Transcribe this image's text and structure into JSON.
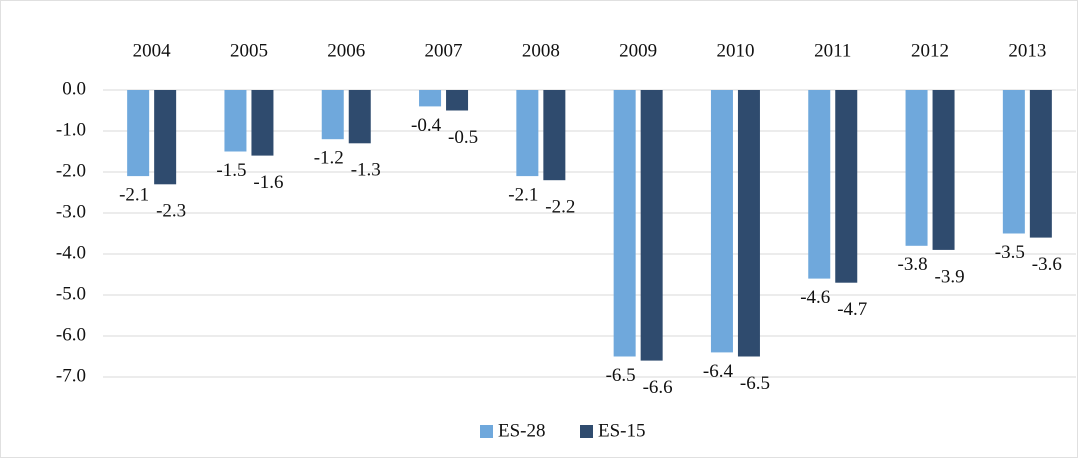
{
  "chart_data": {
    "type": "bar",
    "categories": [
      "2004",
      "2005",
      "2006",
      "2007",
      "2008",
      "2009",
      "2010",
      "2011",
      "2012",
      "2013"
    ],
    "series": [
      {
        "name": "ES-28",
        "color": "#6fa8dc",
        "values": [
          -2.1,
          -1.5,
          -1.2,
          -0.4,
          -2.1,
          -6.5,
          -6.4,
          -4.6,
          -3.8,
          -3.5
        ]
      },
      {
        "name": "ES-15",
        "color": "#2f4b6e",
        "values": [
          -2.3,
          -1.6,
          -1.3,
          -0.5,
          -2.2,
          -6.6,
          -6.5,
          -4.7,
          -3.9,
          -3.6
        ]
      }
    ],
    "ylim": [
      -7,
      0
    ],
    "yticks": [
      {
        "value": 0,
        "label": "0.0"
      },
      {
        "value": -1,
        "label": "-1.0"
      },
      {
        "value": -2,
        "label": "-2.0"
      },
      {
        "value": -3,
        "label": "-3.0"
      },
      {
        "value": -4,
        "label": "-4.0"
      },
      {
        "value": -5,
        "label": "-5.0"
      },
      {
        "value": -6,
        "label": "-6.0"
      },
      {
        "value": -7,
        "label": "-7.0"
      }
    ],
    "grid": true,
    "legend": "bottom"
  }
}
